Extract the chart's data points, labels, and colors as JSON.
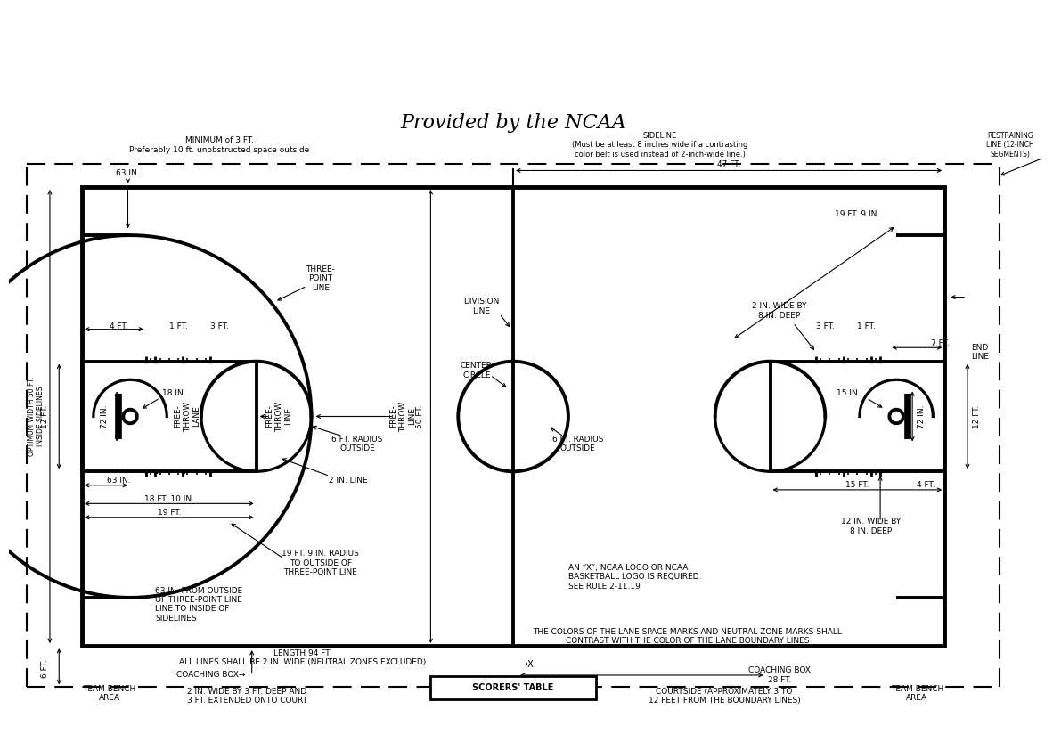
{
  "title": "Provided by the NCAA",
  "bg": "#ffffff",
  "lc": "#000000",
  "fw": 11.32,
  "fh": 8.22,
  "ann": {
    "minimum_3ft": "MINIMUM of 3 FT.\nPreferably 10 ft. unobstructed space outside",
    "sideline": "SIDELINE\n(Must be at least 8 inches wide if a contrasting\ncolor belt is used instead of 2-inch-wide line.)",
    "restraining_line": "RESTRAINING\nLINE (12-INCH\nSEGMENTS)",
    "end_line": "END\nLINE",
    "optimum_width": "OPTIMUM WIDTH 50 FT.\nINSIDE SIDELINES",
    "63in_top": "63 IN.",
    "three_point_line": "THREE-\nPOINT\nLINE",
    "division_line": "DIVISION\nLINE",
    "center_circle": "CENTER\nCIRCLE",
    "6ft_radius_left": "6 FT. RADIUS\nOUTSIDE",
    "6ft_radius_center": "6 FT. RADIUS\nOUTSIDE",
    "4ft": "4 FT.",
    "1ft": "1 FT.",
    "3ft": "3 FT.",
    "18in": "18 IN.",
    "72in_left": "72 IN.",
    "free_throw_lane": "FREE-\nTHROW\nLANE",
    "free_throw_line_left": "FREE-\nTHROW\nLINE",
    "free_throw_line_right": "FREE-\nTHROW\nLINE",
    "2in_line_left": "2 IN. LINE",
    "2in_line_right": "2 IN. LINE",
    "18ft10in": "18 FT. 10 IN.",
    "19ft": "19 FT.",
    "63in_basket": "63 IN.",
    "19ft9in_radius": "19 FT. 9 IN. RADIUS\nTO OUTSIDE OF\nTHREE-POINT LINE",
    "63in_from_outside": "63 IN. FROM OUTSIDE\nOF THREE-POINT LINE\nLINE TO INSIDE OF\nSIDELINES",
    "length_94ft": "LENGTH 94 FT\nALL LINES SHALL BE 2 IN. WIDE (NEUTRAL ZONES EXCLUDED)",
    "47ft": "47 FT.",
    "19ft9in_right": "19 FT. 9 IN.",
    "3ft_right": "3 FT.",
    "1ft_right": "1 FT.",
    "2in_wide_8in_deep": "2 IN. WIDE BY\n8 IN. DEEP",
    "7ft": "7 FT.",
    "15in": "15 IN.",
    "72in_right": "72 IN.",
    "12ft_left": "12 FT.",
    "12ft_right": "12 FT.",
    "15ft": "15 FT.",
    "4ft_right": "4 FT.",
    "12in_wide_8in_deep": "12 IN. WIDE BY\n8 IN. DEEP",
    "50ft": "50 FT.",
    "6ft_side": "6 FT.",
    "ncaa_x_text": "AN “X”, NCAA LOGO OR NCAA\nBASKETBALL LOGO IS REQUIRED.\nSEE RULE 2-11.19",
    "lane_colors": "THE COLORS OF THE LANE SPACE MARKS AND NEUTRAL ZONE MARKS SHALL\nCONTRAST WITH THE COLOR OF THE LANE BOUNDARY LINES",
    "coaching_box_left": "COACHING BOX→",
    "team_bench_left": "TEAM BENCH\nAREA",
    "2in_wide_3ft_deep": "2 IN. WIDE BY 3 FT. DEEP AND\n3 FT. EXTENDED ONTO COURT",
    "scorers_table": "SCORERS' TABLE",
    "coaching_box_right": "COACHING BOX\n28 FT.",
    "courtside": "COURTSIDE (APPROXIMATELY 3 TO\n12 FEET FROM THE BOUNDARY LINES)",
    "team_bench_right": "TEAM BENCH\nAREA"
  }
}
